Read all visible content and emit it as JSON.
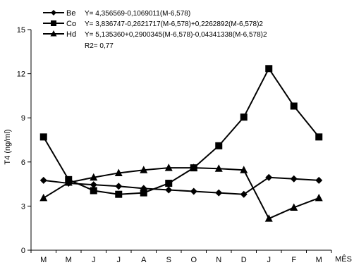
{
  "chart_data": {
    "type": "line",
    "ylabel": "T4 (ng/ml)",
    "xlabel": "MÊS",
    "ylim": [
      0,
      15
    ],
    "y_ticks": [
      0,
      3,
      6,
      9,
      12,
      15
    ],
    "grid": false,
    "legend_position": "top-left",
    "categories": [
      "M",
      "M",
      "J",
      "J",
      "A",
      "S",
      "O",
      "N",
      "D",
      "J",
      "F",
      "M"
    ],
    "series": [
      {
        "name": "Be",
        "marker": "diamond",
        "values": [
          4.75,
          4.55,
          4.45,
          4.35,
          4.2,
          4.1,
          4.0,
          3.9,
          3.8,
          4.95,
          4.85,
          4.75
        ]
      },
      {
        "name": "Co",
        "marker": "square",
        "values": [
          7.7,
          4.8,
          4.05,
          3.8,
          3.9,
          4.55,
          5.6,
          7.1,
          9.05,
          12.35,
          9.8,
          7.7
        ]
      },
      {
        "name": "Hd",
        "marker": "triangle",
        "values": [
          3.55,
          4.6,
          4.95,
          5.25,
          5.45,
          5.6,
          5.6,
          5.55,
          5.45,
          2.15,
          2.9,
          3.55
        ]
      }
    ],
    "equations": [
      "Y= 4,356569-0,1069011(M-6,578)",
      "Y= 3,836747-0,2621717(M-6,578)+0,2262892(M-6,578)2",
      "Y= 5,135360+0,2900345(M-6,578)-0,04341338(M-6,578)2"
    ],
    "r2": "R2= 0,77"
  }
}
